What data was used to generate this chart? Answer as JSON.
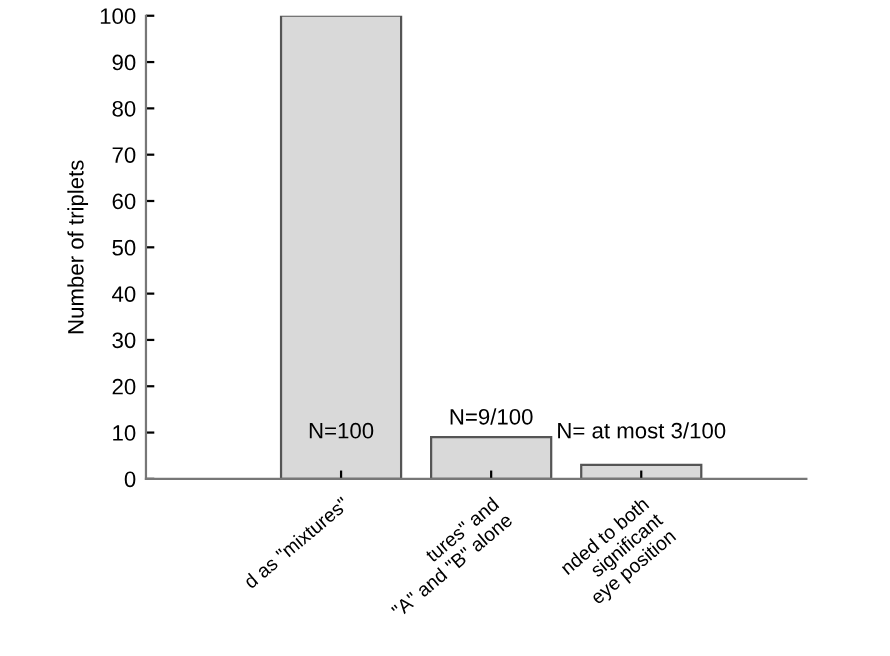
{
  "chart_data": {
    "type": "bar",
    "ylabel": "Number of triplets",
    "categories": [
      "d as \"mixtures\"",
      "tures\" and\n\"A\" and \"B\" alone",
      "nded to both\nsignificant\neye position"
    ],
    "values": [
      100,
      9,
      3
    ],
    "color": "#d9d9d9",
    "ylim": [
      0,
      100
    ],
    "yticks": [
      0,
      10,
      20,
      30,
      40,
      50,
      60,
      70,
      80,
      90,
      100
    ],
    "grid": false,
    "annotations": [
      "N=100",
      "N=9/100",
      "N= at most 3/100"
    ]
  }
}
